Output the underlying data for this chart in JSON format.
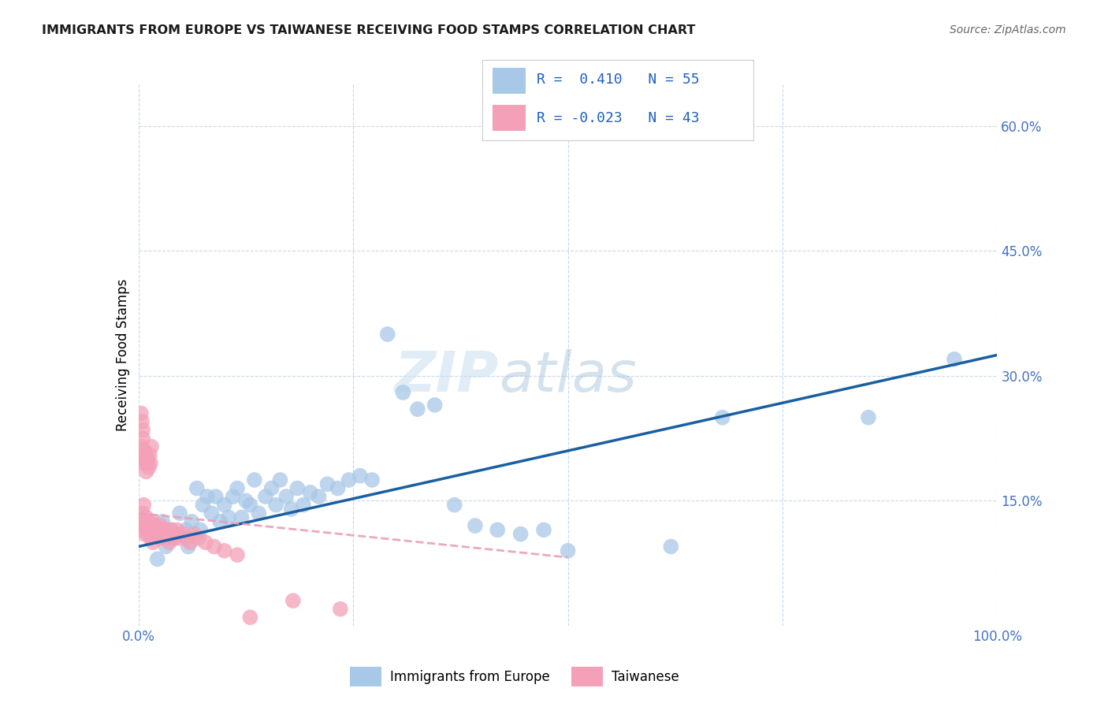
{
  "title": "IMMIGRANTS FROM EUROPE VS TAIWANESE RECEIVING FOOD STAMPS CORRELATION CHART",
  "source": "Source: ZipAtlas.com",
  "xlabel_blue": "Immigrants from Europe",
  "xlabel_pink": "Taiwanese",
  "ylabel": "Receiving Food Stamps",
  "xlim": [
    0.0,
    1.0
  ],
  "ylim": [
    0.0,
    0.65
  ],
  "yticks": [
    0.0,
    0.15,
    0.3,
    0.45,
    0.6
  ],
  "ytick_labels": [
    "",
    "15.0%",
    "30.0%",
    "45.0%",
    "60.0%"
  ],
  "xticks": [
    0.0,
    0.25,
    0.5,
    0.75,
    1.0
  ],
  "xtick_labels": [
    "0.0%",
    "",
    "",
    "",
    "100.0%"
  ],
  "blue_R": 0.41,
  "blue_N": 55,
  "pink_R": -0.023,
  "pink_N": 43,
  "blue_color": "#a8c8e8",
  "pink_color": "#f4a0b8",
  "blue_line_color": "#1a5fa0",
  "pink_line_color": "#e8a0b8",
  "watermark_zip": "ZIP",
  "watermark_atlas": "atlas",
  "blue_line_x0": 0.0,
  "blue_line_y0": 0.095,
  "blue_line_x1": 1.0,
  "blue_line_y1": 0.325,
  "pink_line_x0": 0.0,
  "pink_line_y0": 0.135,
  "pink_line_x1": 0.5,
  "pink_line_y1": 0.082,
  "blue_scatter_x": [
    0.015,
    0.022,
    0.028,
    0.032,
    0.038,
    0.042,
    0.048,
    0.055,
    0.058,
    0.062,
    0.068,
    0.072,
    0.075,
    0.08,
    0.085,
    0.09,
    0.095,
    0.1,
    0.105,
    0.11,
    0.115,
    0.12,
    0.125,
    0.13,
    0.135,
    0.14,
    0.148,
    0.155,
    0.16,
    0.165,
    0.172,
    0.178,
    0.185,
    0.192,
    0.2,
    0.21,
    0.22,
    0.232,
    0.245,
    0.258,
    0.272,
    0.29,
    0.308,
    0.325,
    0.345,
    0.368,
    0.392,
    0.418,
    0.445,
    0.472,
    0.5,
    0.62,
    0.68,
    0.85,
    0.95
  ],
  "blue_scatter_y": [
    0.11,
    0.08,
    0.125,
    0.095,
    0.115,
    0.105,
    0.135,
    0.115,
    0.095,
    0.125,
    0.165,
    0.115,
    0.145,
    0.155,
    0.135,
    0.155,
    0.125,
    0.145,
    0.13,
    0.155,
    0.165,
    0.13,
    0.15,
    0.145,
    0.175,
    0.135,
    0.155,
    0.165,
    0.145,
    0.175,
    0.155,
    0.14,
    0.165,
    0.145,
    0.16,
    0.155,
    0.17,
    0.165,
    0.175,
    0.18,
    0.175,
    0.35,
    0.28,
    0.26,
    0.265,
    0.145,
    0.12,
    0.115,
    0.11,
    0.115,
    0.09,
    0.095,
    0.25,
    0.25,
    0.32
  ],
  "pink_scatter_x": [
    0.003,
    0.004,
    0.005,
    0.006,
    0.007,
    0.008,
    0.009,
    0.01,
    0.011,
    0.012,
    0.013,
    0.014,
    0.015,
    0.016,
    0.017,
    0.018,
    0.019,
    0.02,
    0.022,
    0.024,
    0.026,
    0.028,
    0.03,
    0.032,
    0.034,
    0.036,
    0.038,
    0.04,
    0.042,
    0.045,
    0.048,
    0.052,
    0.056,
    0.06,
    0.065,
    0.07,
    0.078,
    0.088,
    0.1,
    0.115,
    0.13,
    0.18,
    0.235
  ],
  "pink_scatter_y": [
    0.115,
    0.125,
    0.135,
    0.145,
    0.11,
    0.12,
    0.13,
    0.115,
    0.125,
    0.11,
    0.12,
    0.105,
    0.115,
    0.125,
    0.1,
    0.115,
    0.12,
    0.11,
    0.115,
    0.105,
    0.12,
    0.11,
    0.105,
    0.115,
    0.11,
    0.1,
    0.115,
    0.105,
    0.11,
    0.115,
    0.105,
    0.11,
    0.105,
    0.1,
    0.11,
    0.105,
    0.1,
    0.095,
    0.09,
    0.085,
    0.01,
    0.03,
    0.02
  ],
  "pink_extra_x": [
    0.003,
    0.004,
    0.005,
    0.006,
    0.007,
    0.008,
    0.009,
    0.01,
    0.011,
    0.012,
    0.013,
    0.014,
    0.015,
    0.003,
    0.004,
    0.005
  ],
  "pink_extra_y": [
    0.2,
    0.215,
    0.225,
    0.195,
    0.21,
    0.205,
    0.185,
    0.195,
    0.2,
    0.19,
    0.205,
    0.195,
    0.215,
    0.255,
    0.245,
    0.235
  ]
}
